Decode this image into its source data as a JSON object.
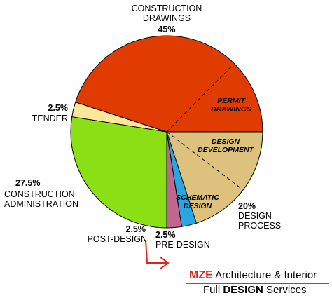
{
  "chart_data": {
    "type": "pie",
    "categories": [
      "DESIGN PROCESS",
      "PRE-DESIGN",
      "POST-DESIGN",
      "CONSTRUCTION ADMINISTRATION",
      "TENDER",
      "CONSTRUCTION DRAWINGS"
    ],
    "values": [
      20,
      2.5,
      2.5,
      27.5,
      2.5,
      45
    ],
    "value_labels": [
      "20%",
      "2.5%",
      "2.5%",
      "27.5%",
      "2.5%",
      "45%"
    ],
    "colors": [
      "#dcc27c",
      "#2aa6e0",
      "#c0668f",
      "#8ae014",
      "#ffe79a",
      "#e03c02"
    ],
    "annotations": [
      "PERMIT DRAWINGS",
      "DESIGN DEVELOPMENT",
      "SCHEMATIC DESIGN"
    ],
    "branding": {
      "line1": [
        "MZE",
        "Architecture & Interior"
      ],
      "line2": [
        "Full",
        "DESIGN",
        "Services"
      ]
    }
  }
}
